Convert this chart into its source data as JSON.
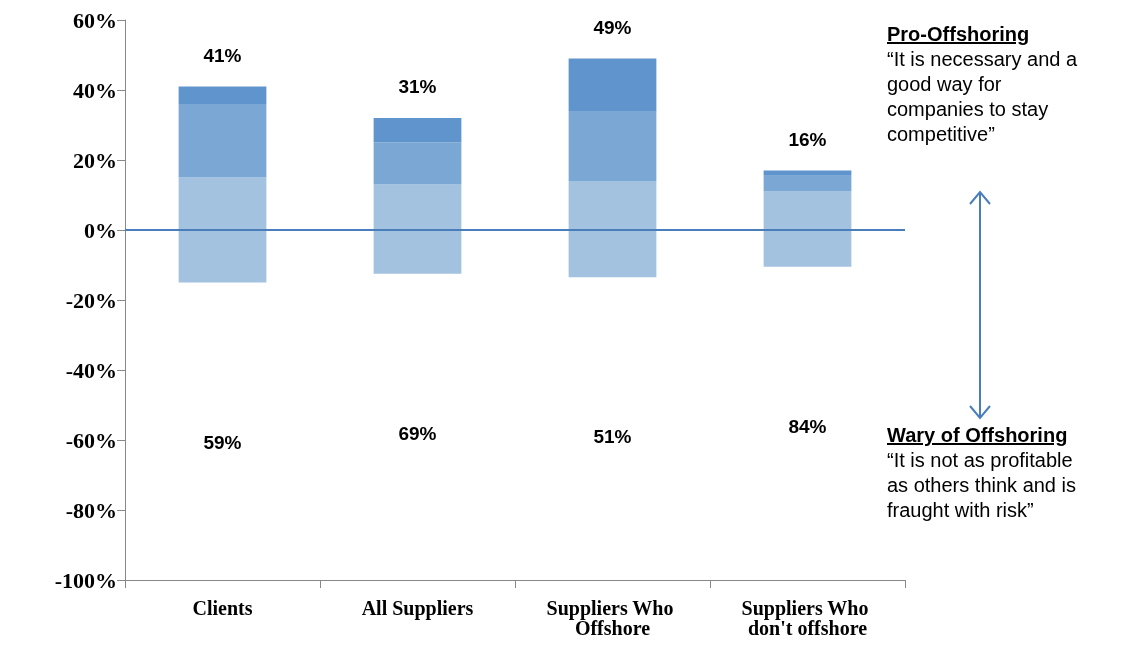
{
  "chart_data": {
    "type": "bar",
    "stacked": true,
    "categories": [
      "Clients",
      "All Suppliers",
      "Suppliers Who Offshore",
      "Suppliers Who don't offshore"
    ],
    "series": [
      {
        "color": "#a3c2e0",
        "values": [
          15,
          13,
          14,
          11
        ]
      },
      {
        "color": "#7ba7d4",
        "values": [
          21,
          12,
          20,
          4.5
        ]
      },
      {
        "color": "#5f95cc",
        "values": [
          5,
          7,
          15,
          1.5
        ]
      },
      {
        "color": "#a3c2e0",
        "values": [
          -15,
          -12.5,
          -13.5,
          -10.5
        ]
      }
    ],
    "ylim": [
      -100,
      60
    ],
    "yticks": [
      {
        "value": -100,
        "label": "-100%"
      },
      {
        "value": -80,
        "label": "-80%"
      },
      {
        "value": -60,
        "label": "-60%"
      },
      {
        "value": -40,
        "label": "-40%"
      },
      {
        "value": -20,
        "label": "-20%"
      },
      {
        "value": 0,
        "label": "0%"
      },
      {
        "value": 20,
        "label": "20%"
      },
      {
        "value": 40,
        "label": "40%"
      },
      {
        "value": 60,
        "label": "60%"
      }
    ],
    "ref_lines": [
      {
        "axis": "y",
        "value": 0,
        "color": "#4a7ebb"
      }
    ],
    "annotations": [
      "41%",
      "31%",
      "49%",
      "16%",
      "59%",
      "69%",
      "51%",
      "84%",
      "Pro-Offshoring",
      "“It is necessary and a good way for companies to stay competitive”",
      "Wary of Offshoring",
      "“It is not as profitable as others think and is fraught with risk”"
    ],
    "grid": false
  }
}
